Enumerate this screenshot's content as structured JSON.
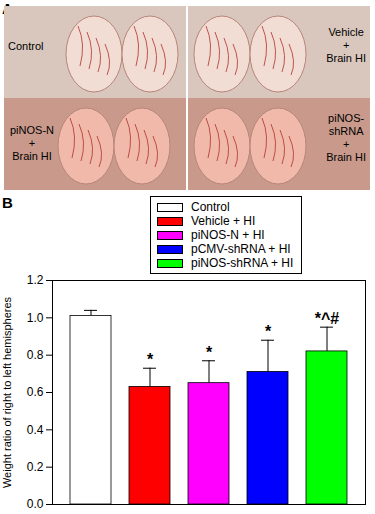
{
  "photo_panel": {
    "panel_label": "A",
    "images": [
      "Control",
      "Vehicle\n+\nBrain HI",
      "piNOS-N\n+\nBrain HI",
      "piNOS-\nshRNA\n+\nBrain HI"
    ]
  },
  "chart_data": {
    "type": "bar",
    "panel_label": "B",
    "categories": [
      "Control",
      "Vehicle + HI",
      "piNOS-N + HI",
      "pCMV-shRNA + HI",
      "piNOS-shRNA + HI"
    ],
    "values": [
      1.01,
      0.63,
      0.65,
      0.71,
      0.82
    ],
    "errors": [
      0.03,
      0.1,
      0.12,
      0.17,
      0.13
    ],
    "annotations": [
      null,
      "*",
      "*",
      "*",
      "*^#"
    ],
    "colors": [
      "#ffffff",
      "#ff0000",
      "#ff00ff",
      "#0000ff",
      "#00ff00"
    ],
    "ylabel": "Weight ratio of right to left hemispheres",
    "ylim": [
      0,
      1.2
    ],
    "yticks": [
      {
        "value": 0,
        "label": "0.0"
      },
      0.2,
      0.4,
      0.6,
      0.8,
      {
        "value": 1,
        "label": "1.0"
      },
      1.2
    ],
    "legend": "top",
    "tick_labels": "y"
  }
}
